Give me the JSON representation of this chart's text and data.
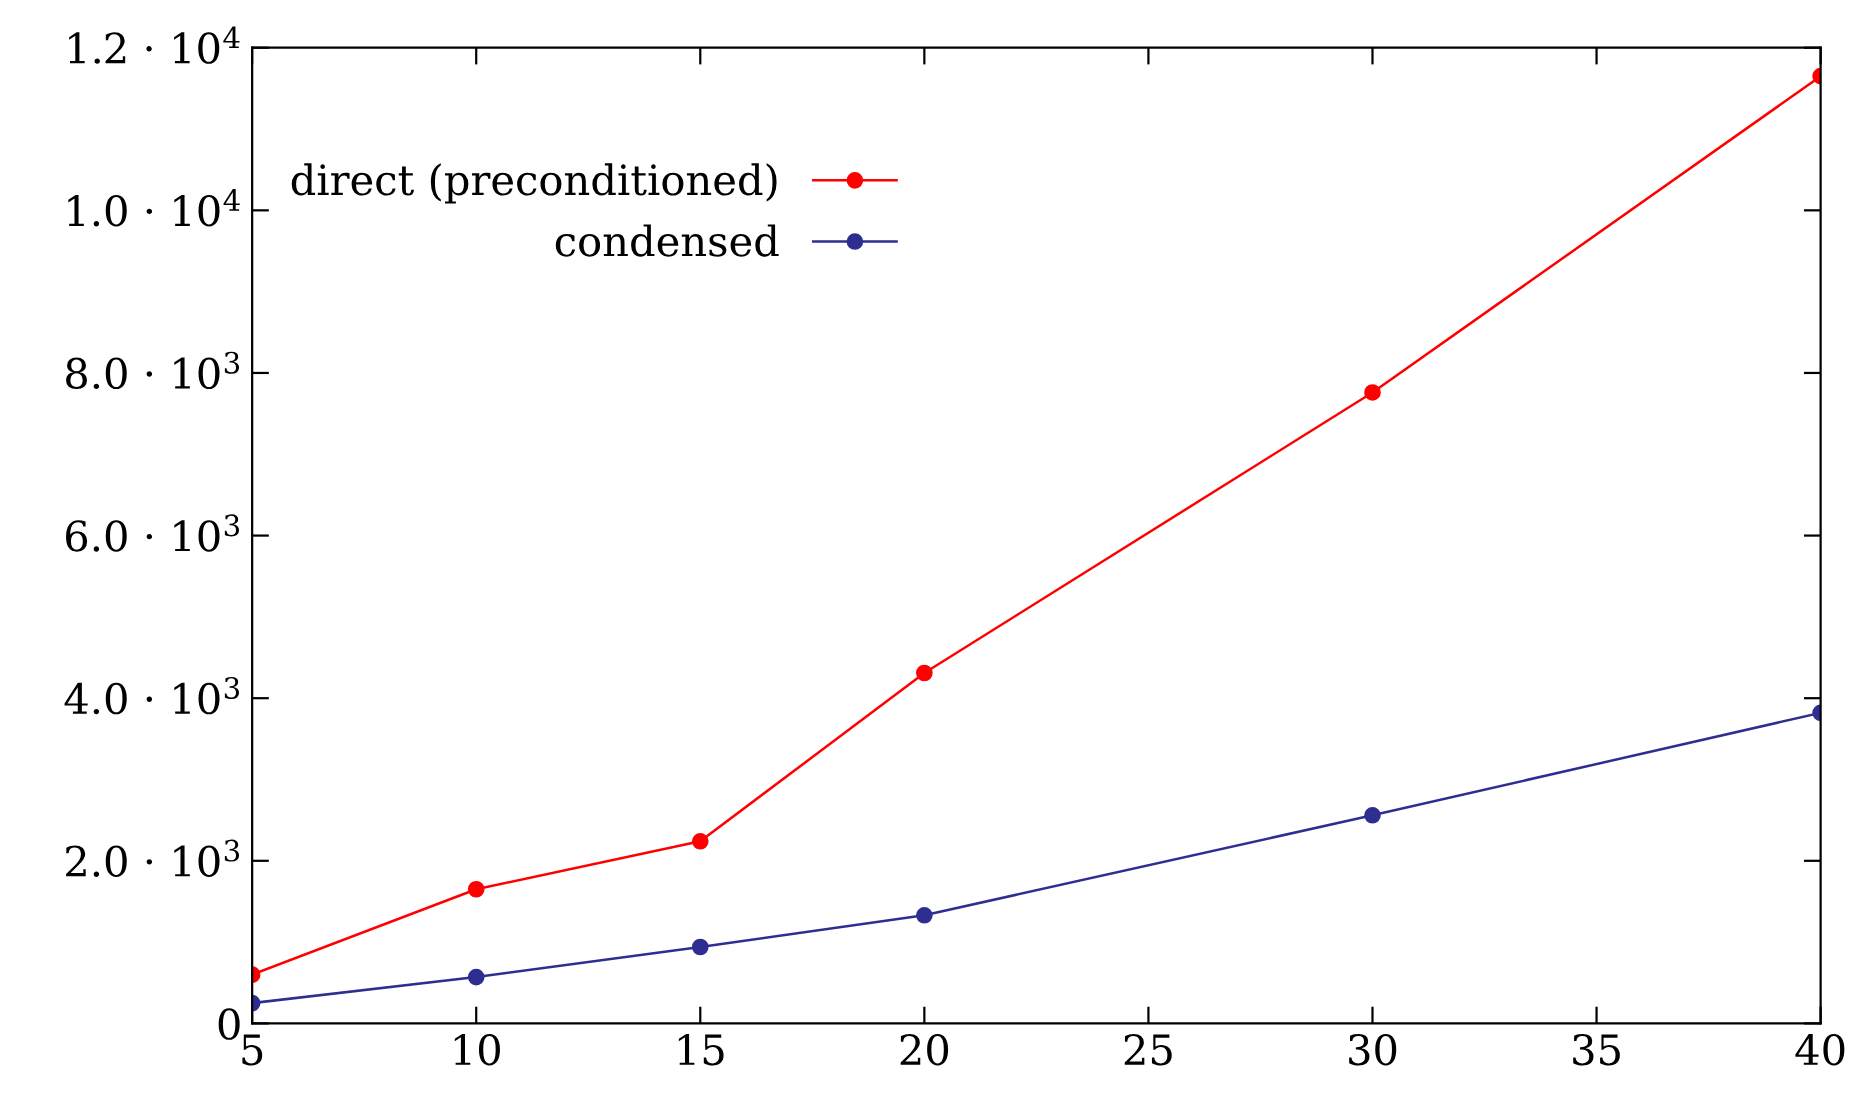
{
  "chart_data": {
    "type": "line",
    "x": [
      5,
      10,
      15,
      20,
      30,
      40
    ],
    "series": [
      {
        "name": "direct (preconditioned)",
        "color": "#ff0000",
        "values": [
          600,
          1650,
          2240,
          4310,
          7760,
          11650
        ]
      },
      {
        "name": "condensed",
        "color": "#2e2e91",
        "values": [
          250,
          570,
          940,
          1330,
          2560,
          3820
        ]
      }
    ],
    "xlim": [
      5,
      40
    ],
    "xticks": [
      5,
      10,
      15,
      20,
      25,
      30,
      35,
      40
    ],
    "ylim": [
      0,
      12000
    ],
    "yticks": [
      0,
      {
        "value": 2000,
        "label": "2.0 · 10$^{3}$"
      },
      {
        "value": 4000,
        "label": "4.0 · 10$^{3}$"
      },
      {
        "value": 6000,
        "label": "6.0 · 10$^{3}$"
      },
      {
        "value": 8000,
        "label": "8.0 · 10$^{3}$"
      },
      {
        "value": 10000,
        "label": "1.0 · 10$^{4}$"
      },
      {
        "value": 12000,
        "label": "1.2 · 10$^{4}$"
      }
    ],
    "marker": "circle",
    "line_style": "solid",
    "legend": "top left",
    "grid": false
  }
}
